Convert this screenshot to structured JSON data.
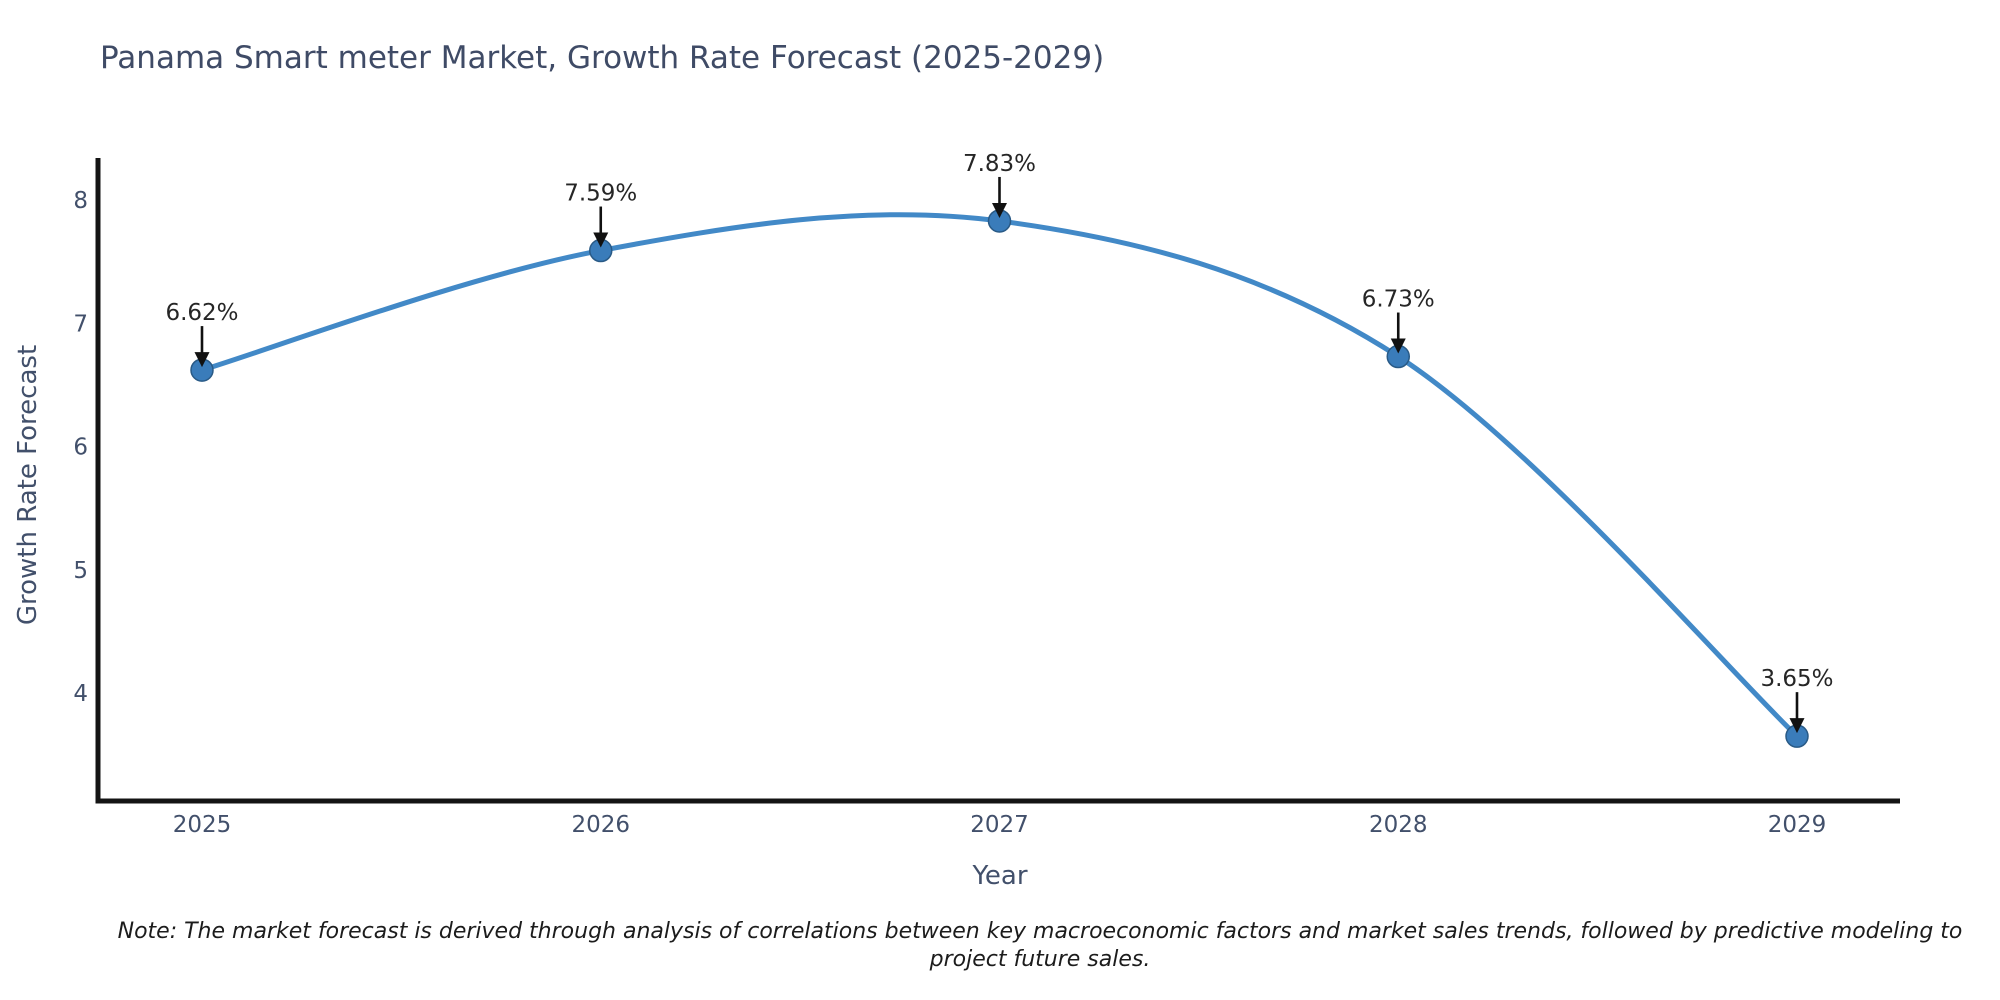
{
  "title": "Panama Smart meter Market, Growth Rate Forecast (2025-2029)",
  "note": "Note: The market forecast is derived through analysis of correlations between key macroeconomic factors and market sales trends, followed by predictive modeling to project future sales.",
  "chart_data": {
    "type": "line",
    "title": "Panama Smart meter Market, Growth Rate Forecast (2025-2029)",
    "xlabel": "Year",
    "ylabel": "Growth Rate Forecast",
    "categories": [
      "2025",
      "2026",
      "2027",
      "2028",
      "2029"
    ],
    "values": [
      6.62,
      7.59,
      7.83,
      6.73,
      3.65
    ],
    "point_labels": [
      "6.62%",
      "7.59%",
      "7.83%",
      "6.73%",
      "3.65%"
    ],
    "yticks": [
      "4",
      "5",
      "6",
      "7",
      "8"
    ],
    "ytick_values": [
      4,
      5,
      6,
      7,
      8
    ],
    "ylim": [
      3.12,
      8.33
    ],
    "grid": false,
    "legend": "none",
    "smooth": true,
    "colors": {
      "line": "#4289c7",
      "marker_fill": "#3a7cba",
      "marker_edge": "#295a86",
      "spine": "#141414",
      "tick_text": "#42506b",
      "title_text": "#3f4b66",
      "annotation_text": "#262626",
      "arrow": "#111111",
      "background": "#ffffff"
    }
  }
}
